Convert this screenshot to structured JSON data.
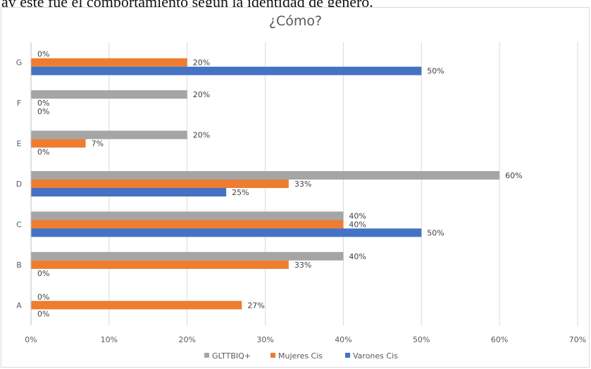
{
  "top_text": "ay este fue el comportamiento según la identidad de género.",
  "chart_data": {
    "type": "bar",
    "orientation": "horizontal",
    "title": "¿Cómo?",
    "categories": [
      "A",
      "B",
      "C",
      "D",
      "E",
      "F",
      "G"
    ],
    "series": [
      {
        "name": "Varones Cis",
        "color": "#4472C4",
        "values": [
          0,
          0,
          50,
          25,
          0,
          0,
          50
        ],
        "labels": [
          "0%",
          "0%",
          "50%",
          "25%",
          "0%",
          "0%",
          "50%"
        ]
      },
      {
        "name": "Mujeres Cis",
        "color": "#ED7D31",
        "values": [
          27,
          33,
          40,
          33,
          7,
          0,
          20
        ],
        "labels": [
          "27%",
          "33%",
          "40%",
          "33%",
          "7%",
          "0%",
          "20%"
        ]
      },
      {
        "name": "GLTTBIQ+",
        "color": "#A5A5A5",
        "values": [
          0,
          40,
          40,
          60,
          20,
          20,
          0
        ],
        "labels": [
          "0%",
          "40%",
          "40%",
          "60%",
          "20%",
          "20%",
          "0%"
        ]
      }
    ],
    "xlim": [
      0,
      70
    ],
    "xticks": [
      "0%",
      "10%",
      "20%",
      "30%",
      "40%",
      "50%",
      "60%",
      "70%"
    ],
    "grid": true,
    "legend_position": "bottom",
    "legend_order": [
      "GLTTBIQ+",
      "Mujeres Cis",
      "Varones Cis"
    ]
  }
}
